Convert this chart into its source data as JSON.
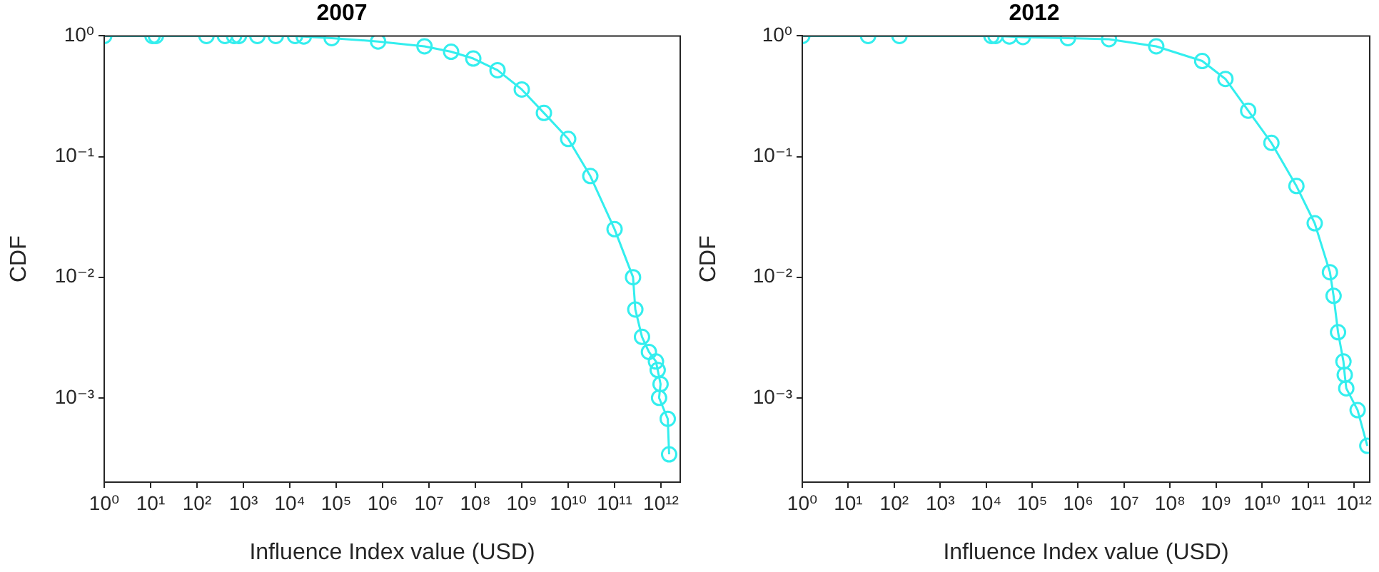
{
  "chart_data": [
    {
      "type": "line",
      "title": "2007",
      "xlabel": "Influence Index value (USD)",
      "ylabel": "CDF",
      "log": "xy",
      "grid": false,
      "marker": "circle",
      "line_style": "solid",
      "x": [
        1,
        11,
        13,
        160,
        400,
        630,
        800,
        2000,
        5000,
        13000,
        20000,
        80000,
        800000,
        8000000,
        30000000,
        90000000,
        300000000,
        1000000000,
        3000000000,
        10000000000,
        30000000000,
        100000000000,
        250000000000,
        280000000000,
        390000000000,
        550000000000,
        780000000000,
        850000000000,
        980000000000,
        910000000000,
        1400000000000,
        1500000000000
      ],
      "series": [
        {
          "color": "#33eeee",
          "values": [
            1,
            1,
            1,
            1,
            1,
            1,
            1,
            1,
            1,
            1,
            0.99,
            0.96,
            0.9,
            0.82,
            0.74,
            0.65,
            0.52,
            0.36,
            0.23,
            0.14,
            0.069,
            0.025,
            0.01,
            0.0054,
            0.0032,
            0.0024,
            0.002,
            0.0017,
            0.0013,
            0.001,
            0.00067,
            0.00034
          ]
        }
      ],
      "xlim": [
        1,
        2600000000000
      ],
      "ylim": [
        0.0002,
        1
      ],
      "xticks": [
        {
          "value": 1,
          "label": "10⁰"
        },
        {
          "value": 10,
          "label": "10¹"
        },
        {
          "value": 100,
          "label": "10²"
        },
        {
          "value": 1000,
          "label": "10³"
        },
        {
          "value": 10000,
          "label": "10⁴"
        },
        {
          "value": 100000,
          "label": "10⁵"
        },
        {
          "value": 1000000,
          "label": "10⁶"
        },
        {
          "value": 10000000,
          "label": "10⁷"
        },
        {
          "value": 100000000,
          "label": "10⁸"
        },
        {
          "value": 1000000000,
          "label": "10⁹"
        },
        {
          "value": 10000000000,
          "label": "10¹⁰"
        },
        {
          "value": 100000000000,
          "label": "10¹¹"
        },
        {
          "value": 1000000000000,
          "label": "10¹²"
        }
      ],
      "yticks": [
        {
          "value": 0.001,
          "label": "10⁻³"
        },
        {
          "value": 0.01,
          "label": "10⁻²"
        },
        {
          "value": 0.1,
          "label": "10⁻¹"
        },
        {
          "value": 1,
          "label": "10⁰"
        }
      ]
    },
    {
      "type": "line",
      "title": "2012",
      "xlabel": "Influence Index value (USD)",
      "ylabel": "CDF",
      "log": "xy",
      "grid": false,
      "marker": "circle",
      "line_style": "solid",
      "x": [
        1,
        27,
        130,
        13000,
        16000,
        32000,
        63000,
        600000,
        4700000,
        50000000,
        500000000,
        1600000000,
        5000000000,
        16000000000,
        56000000000,
        140000000000,
        300000000000,
        360000000000,
        450000000000,
        590000000000,
        630000000000,
        680000000000,
        1200000000000,
        1950000000000
      ],
      "series": [
        {
          "color": "#33eeee",
          "values": [
            1,
            1,
            1,
            1,
            1,
            0.99,
            0.98,
            0.96,
            0.94,
            0.82,
            0.62,
            0.44,
            0.24,
            0.13,
            0.057,
            0.028,
            0.011,
            0.007,
            0.0035,
            0.002,
            0.00155,
            0.0012,
            0.00079,
            0.0004
          ]
        }
      ],
      "xlim": [
        1,
        2200000000000
      ],
      "ylim": [
        0.0002,
        1
      ],
      "xticks": [
        {
          "value": 1,
          "label": "10⁰"
        },
        {
          "value": 10,
          "label": "10¹"
        },
        {
          "value": 100,
          "label": "10²"
        },
        {
          "value": 1000,
          "label": "10³"
        },
        {
          "value": 10000,
          "label": "10⁴"
        },
        {
          "value": 100000,
          "label": "10⁵"
        },
        {
          "value": 1000000,
          "label": "10⁶"
        },
        {
          "value": 10000000,
          "label": "10⁷"
        },
        {
          "value": 100000000,
          "label": "10⁸"
        },
        {
          "value": 1000000000,
          "label": "10⁹"
        },
        {
          "value": 10000000000,
          "label": "10¹⁰"
        },
        {
          "value": 100000000000,
          "label": "10¹¹"
        },
        {
          "value": 1000000000000,
          "label": "10¹²"
        }
      ],
      "yticks": [
        {
          "value": 0.001,
          "label": "10⁻³"
        },
        {
          "value": 0.01,
          "label": "10⁻²"
        },
        {
          "value": 0.1,
          "label": "10⁻¹"
        },
        {
          "value": 1,
          "label": "10⁰"
        }
      ]
    }
  ]
}
